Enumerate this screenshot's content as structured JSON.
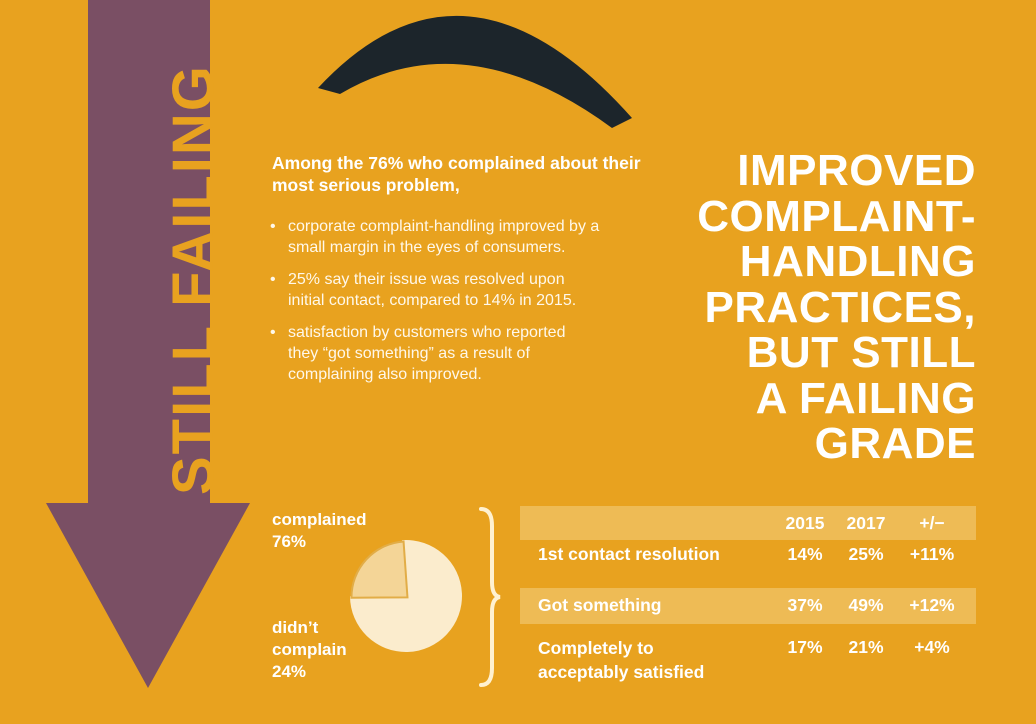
{
  "side_banner": {
    "text": "STILL FAILING"
  },
  "intro": {
    "lead": "Among the 76% who complained about their most serious problem,",
    "bullets": [
      "corporate complaint-handling improved by a small margin in the eyes of consumers.",
      "25% say their issue was resolved upon initial contact, compared to 14% in 2015.",
      "satisfaction by customers who reported they “got something” as a result of complaining also improved."
    ]
  },
  "headline": {
    "lines": [
      "IMPROVED",
      "COMPLAINT-",
      "HANDLING",
      "PRACTICES,",
      "BUT STILL",
      "A FAILING",
      "GRADE"
    ]
  },
  "pie": {
    "complained_label": "complained",
    "complained_value": "76%",
    "didnt_label_1": "didn’t",
    "didnt_label_2": "complain",
    "didnt_value": "24%"
  },
  "chart_data": {
    "type": "pie",
    "categories": [
      "complained",
      "didn’t complain"
    ],
    "values": [
      76,
      24
    ],
    "colors": [
      "#fbeccd",
      "#f4d597"
    ]
  },
  "table": {
    "headers": [
      "2015",
      "2017",
      "+/−"
    ],
    "rows": [
      {
        "label_1": "1st contact resolution",
        "label_2": "",
        "v2015": "14%",
        "v2017": "25%",
        "change": "+11%"
      },
      {
        "label_1": "Got something",
        "label_2": "",
        "v2015": "37%",
        "v2017": "49%",
        "change": "+12%"
      },
      {
        "label_1": "Completely to",
        "label_2": "acceptably satisfied",
        "v2015": "17%",
        "v2017": "21%",
        "change": "+4%"
      }
    ]
  },
  "colors": {
    "background": "#e8a21f",
    "arrow": "#7a4f64",
    "frown": "#1c252b",
    "row_shade": "#eebb55",
    "pie_main": "#fbeccd",
    "pie_slice": "#f4d597"
  }
}
